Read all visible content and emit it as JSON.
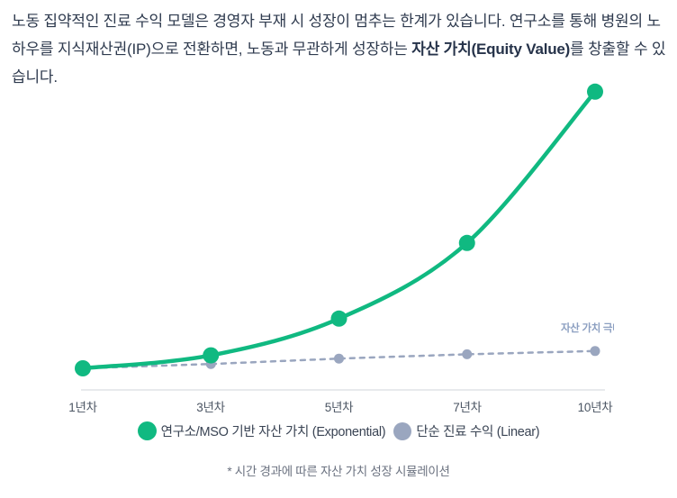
{
  "header": {
    "text_before": "노동 집약적인 진료 수익 모델은 경영자 부재 시 성장이 멈추는 한계가 있습니다. 연구소를 통해 병원의 노하우를 지식재산권(IP)으로 전환하면, 노동과 무관하게 성장하는 ",
    "text_bold": "자산 가치(Equity Value)",
    "text_after": "를 창출할 수 있습니다."
  },
  "chart_data": {
    "type": "line",
    "title": "",
    "xlabel": "",
    "ylabel": "",
    "categories": [
      "1년차",
      "3년차",
      "5년차",
      "7년차",
      "10년차"
    ],
    "series": [
      {
        "name": "연구소/MSO 기반 자산 가치 (Exponential)",
        "line_style": "solid",
        "color": "#10b981",
        "values": [
          1,
          1.6,
          3.3,
          6.8,
          13.8
        ]
      },
      {
        "name": "단순 진료 수익 (Linear)",
        "line_style": "dashed",
        "color": "#9aa6bf",
        "values": [
          1,
          1.2,
          1.45,
          1.65,
          1.8
        ]
      }
    ],
    "ylim": [
      0,
      15
    ],
    "grid": false,
    "legend_position": "bottom",
    "annotation": "자산 가치 극대화"
  },
  "caption": "* 시간 경과에 따른 자산 가치 성장 시뮬레이션",
  "colors": {
    "accent_green": "#10b981",
    "muted_blue": "#9aa6bf",
    "annotation_text": "#8c9fc1",
    "axis_line": "#e8eaed",
    "header_text": "#2e3a4e",
    "tick_text": "#4b5563",
    "caption_text": "#6b7280"
  }
}
